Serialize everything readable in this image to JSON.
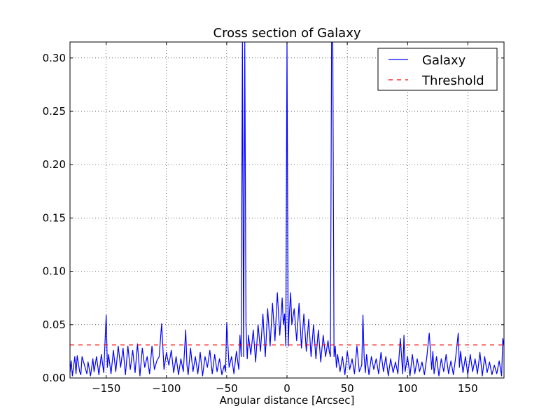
{
  "chart_data": {
    "type": "line",
    "title": "Cross section of Galaxy",
    "xlabel": "Angular distance [Arcsec]",
    "ylabel": "",
    "xlim": [
      -180,
      180
    ],
    "ylim": [
      0,
      0.315
    ],
    "x_ticks": [
      -150,
      -100,
      -50,
      0,
      50,
      100,
      150
    ],
    "x_tick_labels": [
      "−150",
      "−100",
      "−50",
      "0",
      "50",
      "100",
      "150"
    ],
    "y_ticks": [
      0.0,
      0.05,
      0.1,
      0.15,
      0.2,
      0.25,
      0.3
    ],
    "y_tick_labels": [
      "0.00",
      "0.05",
      "0.10",
      "0.15",
      "0.20",
      "0.25",
      "0.30"
    ],
    "grid": true,
    "legend_position": "top-right",
    "series": [
      {
        "name": "Galaxy",
        "color": "#0000ff",
        "style": "solid",
        "x": [
          -180,
          -179,
          -178,
          -176,
          -175,
          -174,
          -172,
          -171,
          -170,
          -168,
          -166,
          -165,
          -163,
          -161,
          -160,
          -158,
          -156,
          -154,
          -152,
          -150,
          -149,
          -148,
          -146,
          -144,
          -142,
          -140,
          -138,
          -136,
          -134,
          -132,
          -130,
          -128,
          -126,
          -124,
          -122,
          -120,
          -118,
          -116,
          -114,
          -112,
          -110,
          -108,
          -106,
          -104,
          -102,
          -100,
          -98,
          -96,
          -94,
          -92,
          -90,
          -88,
          -86,
          -84,
          -83,
          -82,
          -80,
          -78,
          -76,
          -74,
          -72,
          -70,
          -68,
          -66,
          -64,
          -62,
          -60,
          -58,
          -56,
          -54,
          -52,
          -51,
          -50,
          -48,
          -46,
          -44,
          -42,
          -40,
          -39,
          -38,
          -37,
          -36,
          -35,
          -34,
          -33,
          -32,
          -30,
          -28,
          -26,
          -24,
          -22,
          -20,
          -18,
          -16,
          -14,
          -12,
          -10,
          -8,
          -6,
          -4,
          -3,
          -2,
          -1,
          0,
          1,
          2,
          3,
          4,
          6,
          8,
          10,
          12,
          14,
          16,
          18,
          20,
          22,
          24,
          26,
          28,
          30,
          32,
          34,
          35,
          36,
          37,
          38,
          39,
          40,
          41,
          42,
          44,
          46,
          48,
          50,
          52,
          54,
          56,
          58,
          60,
          62,
          63,
          64,
          65,
          66,
          68,
          70,
          72,
          74,
          76,
          78,
          80,
          82,
          84,
          86,
          88,
          90,
          92,
          94,
          96,
          97,
          98,
          100,
          102,
          104,
          106,
          108,
          110,
          112,
          114,
          116,
          118,
          120,
          121,
          122,
          124,
          126,
          128,
          130,
          132,
          134,
          136,
          138,
          140,
          142,
          143,
          144,
          146,
          148,
          150,
          152,
          154,
          156,
          158,
          160,
          162,
          164,
          166,
          168,
          170,
          172,
          174,
          176,
          178,
          179,
          180
        ],
        "y": [
          0.005,
          0.016,
          0.002,
          0.02,
          0.004,
          0.021,
          0.006,
          0.003,
          0.02,
          0.012,
          0.004,
          0.015,
          0.002,
          0.018,
          0.006,
          0.02,
          0.003,
          0.022,
          0.005,
          0.059,
          0.01,
          0.022,
          0.004,
          0.026,
          0.006,
          0.03,
          0.01,
          0.028,
          0.003,
          0.03,
          0.008,
          0.026,
          0.005,
          0.032,
          0.002,
          0.028,
          0.01,
          0.02,
          0.004,
          0.03,
          0.008,
          0.016,
          0.02,
          0.051,
          0.008,
          0.024,
          0.012,
          0.026,
          0.005,
          0.02,
          0.003,
          0.018,
          0.006,
          0.045,
          0.012,
          0.003,
          0.028,
          0.006,
          0.02,
          0.004,
          0.024,
          0.002,
          0.02,
          0.01,
          0.026,
          0.004,
          0.022,
          0.006,
          0.018,
          0.003,
          0.012,
          0.006,
          0.052,
          0.01,
          0.02,
          0.004,
          0.025,
          0.008,
          0.04,
          0.02,
          0.315,
          0.02,
          0.315,
          0.05,
          0.018,
          0.04,
          0.022,
          0.045,
          0.015,
          0.05,
          0.025,
          0.06,
          0.02,
          0.065,
          0.03,
          0.07,
          0.035,
          0.08,
          0.04,
          0.075,
          0.05,
          0.06,
          0.03,
          0.315,
          0.03,
          0.06,
          0.08,
          0.05,
          0.065,
          0.035,
          0.07,
          0.028,
          0.06,
          0.025,
          0.055,
          0.02,
          0.05,
          0.018,
          0.045,
          0.015,
          0.04,
          0.02,
          0.035,
          0.025,
          0.02,
          0.315,
          0.315,
          0.02,
          0.03,
          0.01,
          0.022,
          0.006,
          0.02,
          0.003,
          0.025,
          0.008,
          0.018,
          0.004,
          0.03,
          0.006,
          0.012,
          0.059,
          0.02,
          0.005,
          0.022,
          0.003,
          0.02,
          0.008,
          0.018,
          0.004,
          0.024,
          0.006,
          0.02,
          0.002,
          0.018,
          0.005,
          0.015,
          0.004,
          0.037,
          0.004,
          0.04,
          0.006,
          0.02,
          0.002,
          0.022,
          0.004,
          0.018,
          0.006,
          0.015,
          0.003,
          0.02,
          0.042,
          0.008,
          0.025,
          0.004,
          0.02,
          0.002,
          0.018,
          0.006,
          0.022,
          0.004,
          0.016,
          0.003,
          0.02,
          0.042,
          0.01,
          0.025,
          0.005,
          0.02,
          0.003,
          0.022,
          0.006,
          0.018,
          0.004,
          0.024,
          0.002,
          0.02,
          0.005,
          0.015,
          0.003,
          0.012,
          0.004,
          0.016,
          0.002,
          0.037,
          0.03
        ]
      },
      {
        "name": "Threshold",
        "color": "#ff0000",
        "style": "dashed",
        "x": [
          -180,
          180
        ],
        "y": [
          0.031,
          0.031
        ]
      }
    ]
  }
}
